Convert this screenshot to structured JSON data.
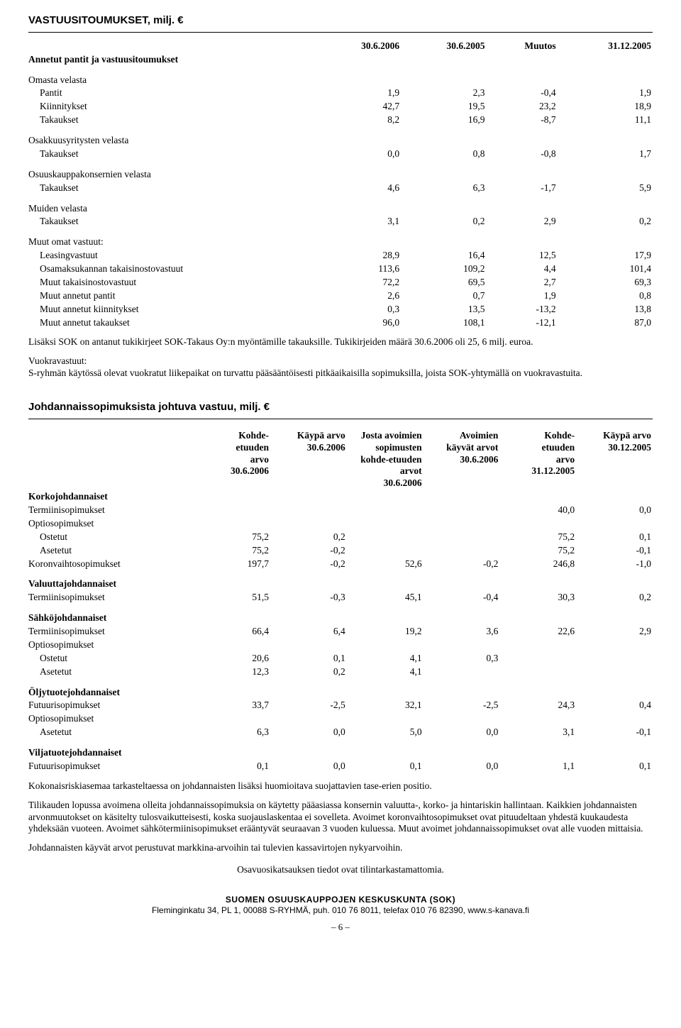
{
  "table1": {
    "title": "VASTUUSITOUMUKSET, milj. €",
    "headers": [
      "30.6.2006",
      "30.6.2005",
      "Muutos",
      "31.12.2005"
    ],
    "groups": [
      {
        "label": "Annetut pantit ja vastuusitoumukset",
        "bold": true,
        "vals": [
          "",
          "",
          "",
          ""
        ]
      },
      {
        "spacer": true
      },
      {
        "label": "Omasta velasta",
        "vals": [
          "",
          "",
          "",
          ""
        ]
      },
      {
        "label": "Pantit",
        "indent": true,
        "vals": [
          "1,9",
          "2,3",
          "-0,4",
          "1,9"
        ]
      },
      {
        "label": "Kiinnitykset",
        "indent": true,
        "vals": [
          "42,7",
          "19,5",
          "23,2",
          "18,9"
        ]
      },
      {
        "label": "Takaukset",
        "indent": true,
        "vals": [
          "8,2",
          "16,9",
          "-8,7",
          "11,1"
        ]
      },
      {
        "spacer": true
      },
      {
        "label": "Osakkuusyritysten velasta",
        "vals": [
          "",
          "",
          "",
          ""
        ]
      },
      {
        "label": "Takaukset",
        "indent": true,
        "vals": [
          "0,0",
          "0,8",
          "-0,8",
          "1,7"
        ]
      },
      {
        "spacer": true
      },
      {
        "label": "Osuuskauppakonsernien velasta",
        "vals": [
          "",
          "",
          "",
          ""
        ]
      },
      {
        "label": "Takaukset",
        "indent": true,
        "vals": [
          "4,6",
          "6,3",
          "-1,7",
          "5,9"
        ]
      },
      {
        "spacer": true
      },
      {
        "label": "Muiden velasta",
        "vals": [
          "",
          "",
          "",
          ""
        ]
      },
      {
        "label": "Takaukset",
        "indent": true,
        "vals": [
          "3,1",
          "0,2",
          "2,9",
          "0,2"
        ]
      },
      {
        "spacer": true
      },
      {
        "label": "Muut omat vastuut:",
        "vals": [
          "",
          "",
          "",
          ""
        ]
      },
      {
        "label": "Leasingvastuut",
        "indent": true,
        "vals": [
          "28,9",
          "16,4",
          "12,5",
          "17,9"
        ]
      },
      {
        "label": "Osamaksukannan takaisinostovastuut",
        "indent": true,
        "vals": [
          "113,6",
          "109,2",
          "4,4",
          "101,4"
        ]
      },
      {
        "label": "Muut takaisinostovastuut",
        "indent": true,
        "vals": [
          "72,2",
          "69,5",
          "2,7",
          "69,3"
        ]
      },
      {
        "label": "Muut annetut pantit",
        "indent": true,
        "vals": [
          "2,6",
          "0,7",
          "1,9",
          "0,8"
        ]
      },
      {
        "label": "Muut annetut kiinnitykset",
        "indent": true,
        "vals": [
          "0,3",
          "13,5",
          "-13,2",
          "13,8"
        ]
      },
      {
        "label": "Muut annetut takaukset",
        "indent": true,
        "vals": [
          "96,0",
          "108,1",
          "-12,1",
          "87,0"
        ]
      }
    ],
    "note1": "Lisäksi SOK on antanut tukikirjeet SOK-Takaus Oy:n myöntämille takauksille. Tukikirjeiden määrä 30.6.2006 oli 25, 6 milj. euroa.",
    "note2a": "Vuokravastuut:",
    "note2b": "S-ryhmän käytössä olevat vuokratut liikepaikat on turvattu pääsääntöisesti pitkäaikaisilla sopimuksilla, joista SOK-yhtymällä on vuokravastuita."
  },
  "table2": {
    "title": "Johdannaissopimuksista johtuva vastuu, milj. €",
    "headers": [
      "Kohde-\netuuden\narvo\n30.6.2006",
      "Käypä arvo\n30.6.2006",
      "Josta avoimien\nsopimusten\nkohde-etuuden\narvot\n30.6.2006",
      "Avoimien\nkäyvät arvot\n30.6.2006",
      "Kohde-\netuuden\narvo\n31.12.2005",
      "Käypä arvo\n30.12.2005"
    ],
    "rows": [
      {
        "label": "Korkojohdannaiset",
        "bold": true,
        "vals": [
          "",
          "",
          "",
          "",
          "",
          ""
        ]
      },
      {
        "label": "Termiinisopimukset",
        "vals": [
          "",
          "",
          "",
          "",
          "40,0",
          "0,0"
        ]
      },
      {
        "label": "Optiosopimukset",
        "vals": [
          "",
          "",
          "",
          "",
          "",
          ""
        ]
      },
      {
        "label": "Ostetut",
        "indent": true,
        "vals": [
          "75,2",
          "0,2",
          "",
          "",
          "75,2",
          "0,1"
        ]
      },
      {
        "label": "Asetetut",
        "indent": true,
        "vals": [
          "75,2",
          "-0,2",
          "",
          "",
          "75,2",
          "-0,1"
        ]
      },
      {
        "label": "Koronvaihtosopimukset",
        "vals": [
          "197,7",
          "-0,2",
          "52,6",
          "-0,2",
          "246,8",
          "-1,0"
        ]
      },
      {
        "spacer": true
      },
      {
        "label": "Valuuttajohdannaiset",
        "bold": true,
        "vals": [
          "",
          "",
          "",
          "",
          "",
          ""
        ]
      },
      {
        "label": "Termiinisopimukset",
        "vals": [
          "51,5",
          "-0,3",
          "45,1",
          "-0,4",
          "30,3",
          "0,2"
        ]
      },
      {
        "spacer": true
      },
      {
        "label": "Sähköjohdannaiset",
        "bold": true,
        "vals": [
          "",
          "",
          "",
          "",
          "",
          ""
        ]
      },
      {
        "label": "Termiinisopimukset",
        "vals": [
          "66,4",
          "6,4",
          "19,2",
          "3,6",
          "22,6",
          "2,9"
        ]
      },
      {
        "label": "Optiosopimukset",
        "vals": [
          "",
          "",
          "",
          "",
          "",
          ""
        ]
      },
      {
        "label": "Ostetut",
        "indent": true,
        "vals": [
          "20,6",
          "0,1",
          "4,1",
          "0,3",
          "",
          ""
        ]
      },
      {
        "label": "Asetetut",
        "indent": true,
        "vals": [
          "12,3",
          "0,2",
          "4,1",
          "",
          "",
          ""
        ]
      },
      {
        "spacer": true
      },
      {
        "label": "Öljytuotejohdannaiset",
        "bold": true,
        "vals": [
          "",
          "",
          "",
          "",
          "",
          ""
        ]
      },
      {
        "label": "Futuurisopimukset",
        "vals": [
          "33,7",
          "-2,5",
          "32,1",
          "-2,5",
          "24,3",
          "0,4"
        ]
      },
      {
        "label": "Optiosopimukset",
        "vals": [
          "",
          "",
          "",
          "",
          "",
          ""
        ]
      },
      {
        "label": "Asetetut",
        "indent": true,
        "vals": [
          "6,3",
          "0,0",
          "5,0",
          "0,0",
          "3,1",
          "-0,1"
        ]
      },
      {
        "spacer": true
      },
      {
        "label": "Viljatuotejohdannaiset",
        "bold": true,
        "vals": [
          "",
          "",
          "",
          "",
          "",
          ""
        ]
      },
      {
        "label": "Futuurisopimukset",
        "vals": [
          "0,1",
          "0,0",
          "0,1",
          "0,0",
          "1,1",
          "0,1"
        ]
      }
    ],
    "p1": "Kokonaisriskiasemaa tarkasteltaessa on johdannaisten lisäksi huomioitava suojattavien tase-erien positio.",
    "p2": "Tilikauden lopussa avoimena olleita johdannaissopimuksia on käytetty pääasiassa konsernin valuutta-, korko- ja hintariskin hallintaan. Kaikkien johdannaisten arvonmuutokset on käsitelty tulosvaikutteisesti, koska suojauslaskentaa ei sovelleta. Avoimet koronvaihtosopimukset ovat pituudeltaan yhdestä kuukaudesta yhdeksään vuoteen. Avoimet sähkötermiinisopimukset erääntyvät seuraavan 3 vuoden kuluessa. Muut avoimet johdannaissopimukset ovat alle vuoden mittaisia.",
    "p3": "Johdannaisten käyvät arvot perustuvat markkina-arvoihin tai tulevien kassavirtojen nykyarvoihin.",
    "p4": "Osavuosikatsauksen tiedot ovat tilintarkastamattomia."
  },
  "footer": {
    "line1": "SUOMEN OSUUSKAUPPOJEN KESKUSKUNTA (SOK)",
    "line2": "Fleminginkatu 34, PL 1, 00088 S-RYHMÄ, puh. 010 76 8011, telefax 010 76 82390, www.s-kanava.fi",
    "page": "– 6 –"
  }
}
